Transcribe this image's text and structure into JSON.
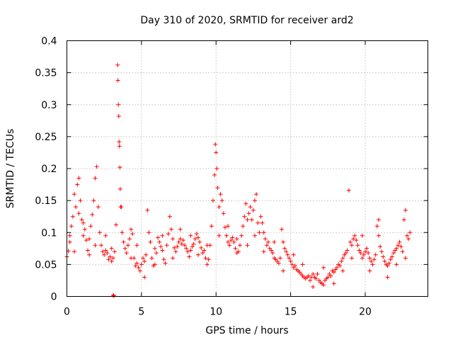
{
  "chart_data": {
    "type": "scatter",
    "title": "Day 310 of 2020, SRMTID for receiver ard2",
    "xlabel": "GPS time / hours",
    "ylabel": "SRMTID / TECUs",
    "xlim": [
      0,
      24.2
    ],
    "ylim": [
      0,
      0.4
    ],
    "x_ticks": [
      0,
      5,
      10,
      15,
      20
    ],
    "x_tick_labels": [
      "0",
      "5",
      "10",
      "15",
      "20"
    ],
    "y_ticks": [
      0,
      0.05,
      0.1,
      0.15,
      0.2,
      0.25,
      0.3,
      0.35,
      0.4
    ],
    "y_tick_labels": [
      "0",
      "0.05",
      "0.1",
      "0.15",
      "0.2",
      "0.25",
      "0.3",
      "0.35",
      "0.4"
    ],
    "grid": true,
    "marker": "plus",
    "color": "#ff0000",
    "series": [
      {
        "name": "SRMTID",
        "points": [
          [
            0.0,
            0.062
          ],
          [
            0.1,
            0.071
          ],
          [
            0.2,
            0.085
          ],
          [
            0.3,
            0.11
          ],
          [
            0.4,
            0.125
          ],
          [
            0.5,
            0.16
          ],
          [
            0.6,
            0.14
          ],
          [
            0.7,
            0.175
          ],
          [
            0.8,
            0.185
          ],
          [
            0.9,
            0.15
          ],
          [
            1.0,
            0.12
          ],
          [
            1.1,
            0.095
          ],
          [
            1.2,
            0.105
          ],
          [
            1.3,
            0.088
          ],
          [
            1.4,
            0.072
          ],
          [
            1.5,
            0.09
          ],
          [
            1.6,
            0.11
          ],
          [
            1.7,
            0.128
          ],
          [
            1.8,
            0.15
          ],
          [
            1.9,
            0.185
          ],
          [
            2.0,
            0.203
          ],
          [
            2.1,
            0.14
          ],
          [
            2.2,
            0.1
          ],
          [
            2.3,
            0.08
          ],
          [
            2.4,
            0.07
          ],
          [
            2.5,
            0.065
          ],
          [
            2.6,
            0.072
          ],
          [
            2.7,
            0.068
          ],
          [
            2.8,
            0.058
          ],
          [
            2.9,
            0.062
          ],
          [
            3.0,
            0.055
          ],
          [
            3.1,
            0.06
          ],
          [
            3.2,
            0.07
          ],
          [
            3.3,
            0.112
          ],
          [
            3.4,
            0.362
          ],
          [
            3.42,
            0.338
          ],
          [
            3.45,
            0.3
          ],
          [
            3.48,
            0.282
          ],
          [
            3.5,
            0.242
          ],
          [
            3.52,
            0.235
          ],
          [
            3.55,
            0.202
          ],
          [
            3.58,
            0.168
          ],
          [
            3.6,
            0.14
          ],
          [
            3.65,
            0.14
          ],
          [
            3.7,
            0.1
          ],
          [
            3.8,
            0.085
          ],
          [
            3.9,
            0.075
          ],
          [
            4.0,
            0.068
          ],
          [
            4.1,
            0.08
          ],
          [
            4.2,
            0.09
          ],
          [
            4.3,
            0.105
          ],
          [
            4.4,
            0.098
          ],
          [
            4.5,
            0.06
          ],
          [
            4.6,
            0.048
          ],
          [
            4.7,
            0.052
          ],
          [
            4.8,
            0.045
          ],
          [
            4.9,
            0.04
          ],
          [
            5.0,
            0.05
          ],
          [
            5.1,
            0.06
          ],
          [
            5.2,
            0.055
          ],
          [
            5.3,
            0.065
          ],
          [
            5.4,
            0.135
          ],
          [
            5.5,
            0.1
          ],
          [
            5.6,
            0.085
          ],
          [
            5.7,
            0.06
          ],
          [
            5.8,
            0.048
          ],
          [
            5.9,
            0.05
          ],
          [
            6.0,
            0.068
          ],
          [
            6.1,
            0.092
          ],
          [
            6.2,
            0.085
          ],
          [
            6.3,
            0.078
          ],
          [
            6.4,
            0.072
          ],
          [
            6.5,
            0.058
          ],
          [
            6.6,
            0.052
          ],
          [
            6.7,
            0.08
          ],
          [
            6.8,
            0.098
          ],
          [
            6.9,
            0.125
          ],
          [
            7.0,
            0.105
          ],
          [
            7.1,
            0.09
          ],
          [
            7.2,
            0.076
          ],
          [
            7.3,
            0.07
          ],
          [
            7.4,
            0.078
          ],
          [
            7.5,
            0.085
          ],
          [
            7.6,
            0.09
          ],
          [
            7.7,
            0.082
          ],
          [
            7.8,
            0.088
          ],
          [
            7.9,
            0.08
          ],
          [
            8.0,
            0.075
          ],
          [
            8.1,
            0.07
          ],
          [
            8.2,
            0.062
          ],
          [
            8.3,
            0.072
          ],
          [
            8.4,
            0.078
          ],
          [
            8.5,
            0.082
          ],
          [
            8.6,
            0.09
          ],
          [
            8.7,
            0.098
          ],
          [
            8.8,
            0.092
          ],
          [
            8.9,
            0.085
          ],
          [
            9.0,
            0.076
          ],
          [
            9.1,
            0.068
          ],
          [
            9.2,
            0.072
          ],
          [
            9.3,
            0.06
          ],
          [
            9.4,
            0.05
          ],
          [
            9.5,
            0.058
          ],
          [
            9.6,
            0.08
          ],
          [
            9.7,
            0.11
          ],
          [
            9.8,
            0.15
          ],
          [
            9.9,
            0.19
          ],
          [
            9.95,
            0.238
          ],
          [
            10.0,
            0.225
          ],
          [
            10.05,
            0.2
          ],
          [
            10.1,
            0.17
          ],
          [
            10.2,
            0.14
          ],
          [
            10.3,
            0.16
          ],
          [
            10.4,
            0.15
          ],
          [
            10.5,
            0.13
          ],
          [
            10.6,
            0.108
          ],
          [
            10.7,
            0.095
          ],
          [
            10.8,
            0.085
          ],
          [
            10.9,
            0.08
          ],
          [
            11.0,
            0.088
          ],
          [
            11.1,
            0.092
          ],
          [
            11.2,
            0.085
          ],
          [
            11.3,
            0.075
          ],
          [
            11.4,
            0.068
          ],
          [
            11.5,
            0.07
          ],
          [
            11.6,
            0.08
          ],
          [
            11.7,
            0.095
          ],
          [
            11.8,
            0.11
          ],
          [
            11.9,
            0.125
          ],
          [
            12.0,
            0.145
          ],
          [
            12.1,
            0.12
          ],
          [
            12.2,
            0.13
          ],
          [
            12.3,
            0.14
          ],
          [
            12.4,
            0.12
          ],
          [
            12.5,
            0.135
          ],
          [
            12.6,
            0.15
          ],
          [
            12.7,
            0.16
          ],
          [
            12.8,
            0.115
          ],
          [
            12.9,
            0.1
          ],
          [
            13.0,
            0.125
          ],
          [
            13.1,
            0.115
          ],
          [
            13.2,
            0.1
          ],
          [
            13.3,
            0.09
          ],
          [
            13.4,
            0.08
          ],
          [
            13.5,
            0.085
          ],
          [
            13.6,
            0.075
          ],
          [
            13.7,
            0.072
          ],
          [
            13.8,
            0.068
          ],
          [
            13.9,
            0.06
          ],
          [
            14.0,
            0.058
          ],
          [
            14.1,
            0.055
          ],
          [
            14.2,
            0.052
          ],
          [
            14.3,
            0.06
          ],
          [
            14.4,
            0.105
          ],
          [
            14.5,
            0.085
          ],
          [
            14.6,
            0.075
          ],
          [
            14.7,
            0.07
          ],
          [
            14.8,
            0.065
          ],
          [
            14.9,
            0.06
          ],
          [
            15.0,
            0.055
          ],
          [
            15.1,
            0.05
          ],
          [
            15.2,
            0.045
          ],
          [
            15.3,
            0.048
          ],
          [
            15.4,
            0.042
          ],
          [
            15.5,
            0.04
          ],
          [
            15.6,
            0.038
          ],
          [
            15.7,
            0.035
          ],
          [
            15.8,
            0.032
          ],
          [
            15.9,
            0.03
          ],
          [
            16.0,
            0.028
          ],
          [
            16.1,
            0.03
          ],
          [
            16.2,
            0.032
          ],
          [
            16.3,
            0.025
          ],
          [
            16.4,
            0.03
          ],
          [
            16.5,
            0.035
          ],
          [
            16.6,
            0.03
          ],
          [
            16.7,
            0.028
          ],
          [
            16.8,
            0.035
          ],
          [
            16.9,
            0.025
          ],
          [
            17.0,
            0.022
          ],
          [
            17.1,
            0.02
          ],
          [
            17.2,
            0.018
          ],
          [
            17.3,
            0.025
          ],
          [
            17.4,
            0.028
          ],
          [
            17.5,
            0.03
          ],
          [
            17.6,
            0.035
          ],
          [
            17.7,
            0.032
          ],
          [
            17.8,
            0.04
          ],
          [
            17.9,
            0.038
          ],
          [
            18.0,
            0.042
          ],
          [
            18.1,
            0.045
          ],
          [
            18.2,
            0.05
          ],
          [
            18.3,
            0.048
          ],
          [
            18.4,
            0.055
          ],
          [
            18.5,
            0.06
          ],
          [
            18.6,
            0.065
          ],
          [
            18.7,
            0.068
          ],
          [
            18.8,
            0.072
          ],
          [
            18.9,
            0.166
          ],
          [
            19.0,
            0.085
          ],
          [
            19.1,
            0.08
          ],
          [
            19.2,
            0.09
          ],
          [
            19.3,
            0.095
          ],
          [
            19.4,
            0.088
          ],
          [
            19.5,
            0.08
          ],
          [
            19.6,
            0.072
          ],
          [
            19.7,
            0.068
          ],
          [
            19.8,
            0.06
          ],
          [
            19.9,
            0.065
          ],
          [
            20.0,
            0.07
          ],
          [
            20.1,
            0.075
          ],
          [
            20.2,
            0.068
          ],
          [
            20.3,
            0.06
          ],
          [
            20.4,
            0.055
          ],
          [
            20.5,
            0.05
          ],
          [
            20.6,
            0.058
          ],
          [
            20.7,
            0.065
          ],
          [
            20.8,
            0.11
          ],
          [
            20.9,
            0.095
          ],
          [
            21.0,
            0.078
          ],
          [
            21.1,
            0.07
          ],
          [
            21.2,
            0.062
          ],
          [
            21.3,
            0.055
          ],
          [
            21.4,
            0.05
          ],
          [
            21.5,
            0.048
          ],
          [
            21.6,
            0.052
          ],
          [
            21.7,
            0.058
          ],
          [
            21.8,
            0.062
          ],
          [
            21.9,
            0.068
          ],
          [
            22.0,
            0.072
          ],
          [
            22.1,
            0.075
          ],
          [
            22.2,
            0.08
          ],
          [
            22.3,
            0.085
          ],
          [
            22.4,
            0.078
          ],
          [
            22.5,
            0.07
          ],
          [
            22.6,
            0.12
          ],
          [
            22.7,
            0.135
          ],
          [
            22.8,
            0.095
          ],
          [
            22.9,
            0.09
          ],
          [
            23.0,
            0.1
          ],
          [
            3.1,
            0.002
          ],
          [
            3.15,
            0.001
          ],
          [
            0.2,
            0.095
          ],
          [
            0.5,
            0.07
          ],
          [
            0.8,
            0.13
          ],
          [
            1.1,
            0.115
          ],
          [
            1.5,
            0.065
          ],
          [
            1.9,
            0.08
          ],
          [
            2.6,
            0.095
          ],
          [
            3.0,
            0.075
          ],
          [
            4.3,
            0.06
          ],
          [
            4.7,
            0.08
          ],
          [
            5.2,
            0.03
          ],
          [
            5.9,
            0.075
          ],
          [
            6.4,
            0.095
          ],
          [
            7.1,
            0.06
          ],
          [
            7.6,
            0.105
          ],
          [
            8.3,
            0.095
          ],
          [
            8.8,
            0.065
          ],
          [
            9.4,
            0.08
          ],
          [
            10.2,
            0.095
          ],
          [
            10.8,
            0.11
          ],
          [
            11.4,
            0.09
          ],
          [
            12.1,
            0.08
          ],
          [
            12.6,
            0.095
          ],
          [
            13.2,
            0.07
          ],
          [
            13.9,
            0.085
          ],
          [
            14.5,
            0.04
          ],
          [
            15.2,
            0.065
          ],
          [
            15.8,
            0.05
          ],
          [
            16.5,
            0.015
          ],
          [
            17.2,
            0.045
          ],
          [
            17.9,
            0.02
          ],
          [
            18.5,
            0.04
          ],
          [
            19.1,
            0.06
          ],
          [
            19.8,
            0.095
          ],
          [
            20.3,
            0.04
          ],
          [
            20.9,
            0.12
          ],
          [
            21.5,
            0.03
          ],
          [
            22.1,
            0.05
          ],
          [
            22.7,
            0.06
          ]
        ]
      }
    ]
  }
}
